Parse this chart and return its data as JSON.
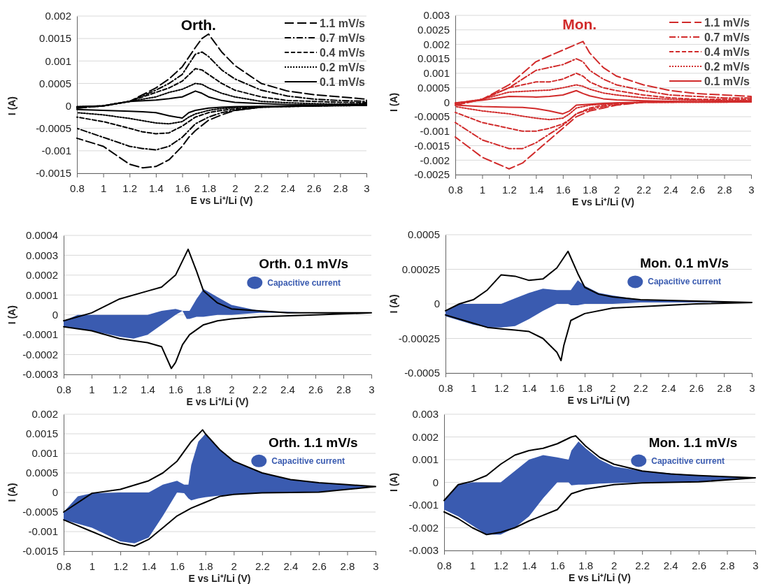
{
  "chart_data": [
    {
      "type": "line",
      "title": "Orth.",
      "xlabel": "E vs Li⁺/Li (V)",
      "ylabel": "I (A)",
      "xlim": [
        0.8,
        3
      ],
      "xticks": [
        0.8,
        1,
        1.2,
        1.4,
        1.6,
        1.8,
        2,
        2.2,
        2.4,
        2.6,
        2.8,
        3
      ],
      "ylim": [
        -0.0015,
        0.002
      ],
      "yticks": [
        -0.0015,
        -0.001,
        -0.0005,
        0,
        0.0005,
        0.001,
        0.0015,
        0.002
      ],
      "grid": "y",
      "legend": "top right",
      "x": [
        0.8,
        1.0,
        1.2,
        1.4,
        1.5,
        1.6,
        1.7,
        1.75,
        1.8,
        1.9,
        2.0,
        2.2,
        2.4,
        2.6,
        2.8,
        3.0,
        3.0,
        2.6,
        2.2,
        2.0,
        1.9,
        1.8,
        1.7,
        1.65,
        1.6,
        1.5,
        1.4,
        1.3,
        1.2,
        1.0,
        0.8
      ],
      "series": [
        {
          "name": "1.1 mV/s",
          "color": "#000000",
          "line_style": "longdash",
          "values": [
            -5e-05,
            0,
            0.0001,
            0.0004,
            0.0006,
            0.00087,
            0.0013,
            0.0015,
            0.0016,
            0.0012,
            0.0009,
            0.0005,
            0.00033,
            0.00025,
            0.0002,
            0.00015,
            5e-05,
            0,
            -3e-05,
            -0.0001,
            -0.0002,
            -0.00032,
            -0.00055,
            -0.0007,
            -0.0009,
            -0.0012,
            -0.00135,
            -0.00138,
            -0.0013,
            -0.0009,
            -0.00072
          ]
        },
        {
          "name": "0.7 mV/s",
          "color": "#000000",
          "line_style": "dashdot",
          "values": [
            -5e-05,
            0,
            0.0001,
            0.00035,
            0.0005,
            0.0007,
            0.00115,
            0.0012,
            0.0011,
            0.0008,
            0.0006,
            0.00035,
            0.00022,
            0.00015,
            0.00012,
            0.0001,
            3e-05,
            0,
            -3e-05,
            -0.0001,
            -0.00015,
            -0.00025,
            -0.0004,
            -0.00055,
            -0.0007,
            -0.0009,
            -0.00098,
            -0.00095,
            -0.0009,
            -0.0007,
            -0.0005
          ]
        },
        {
          "name": "0.4 mV/s",
          "color": "#000000",
          "line_style": "dashed",
          "values": [
            -3e-05,
            0,
            0.0001,
            0.0003,
            0.0004,
            0.00055,
            0.00083,
            0.0008,
            0.0007,
            0.0005,
            0.00035,
            0.0002,
            0.00012,
            0.0001,
            8e-05,
            7e-05,
            2e-05,
            0,
            -2e-05,
            -7e-05,
            -0.0001,
            -0.00015,
            -0.00025,
            -0.00035,
            -0.00045,
            -0.0006,
            -0.00062,
            -0.00058,
            -0.0005,
            -0.00035,
            -0.00025
          ]
        },
        {
          "name": "0.2 mV/s",
          "color": "#000000",
          "line_style": "dotted",
          "values": [
            -2e-05,
            0,
            0.0001,
            0.0002,
            0.0003,
            0.00037,
            0.0005,
            0.00048,
            0.0004,
            0.00028,
            0.0002,
            0.0001,
            7e-05,
            5e-05,
            4e-05,
            4e-05,
            1e-05,
            0,
            -1e-05,
            -4e-05,
            -6e-05,
            -0.0001,
            -0.00018,
            -0.00025,
            -0.00035,
            -0.0004,
            -0.00038,
            -0.00033,
            -0.00028,
            -0.0002,
            -0.00015
          ]
        },
        {
          "name": "0.1 mV/s",
          "color": "#000000",
          "line_style": "solid",
          "values": [
            -2e-05,
            0,
            0.0001,
            0.00013,
            0.00016,
            0.0002,
            0.00033,
            0.00028,
            0.0002,
            0.00012,
            8e-05,
            5e-05,
            3e-05,
            2e-05,
            2e-05,
            3e-05,
            1e-05,
            0,
            -1e-05,
            -2e-05,
            -3e-05,
            -5e-05,
            -0.0001,
            -0.00015,
            -0.00027,
            -0.00022,
            -0.00015,
            -0.00013,
            -0.00012,
            -0.0001,
            -8e-05
          ]
        }
      ]
    },
    {
      "type": "line",
      "title": "Mon.",
      "xlabel": "E vs Li⁺/Li (V)",
      "ylabel": "I (A)",
      "xlim": [
        0.8,
        3
      ],
      "xticks": [
        0.8,
        1,
        1.2,
        1.4,
        1.6,
        1.8,
        2,
        2.2,
        2.4,
        2.6,
        2.8,
        3
      ],
      "ylim": [
        -0.0025,
        0.003
      ],
      "yticks": [
        -0.0025,
        -0.002,
        -0.0015,
        -0.001,
        -0.0005,
        0,
        0.0005,
        0.001,
        0.0015,
        0.002,
        0.0025,
        0.003
      ],
      "grid": "y",
      "legend": "top right",
      "x": [
        0.8,
        1.0,
        1.2,
        1.4,
        1.5,
        1.6,
        1.7,
        1.75,
        1.8,
        1.9,
        2.0,
        2.2,
        2.4,
        2.6,
        2.8,
        3.0,
        3.0,
        2.6,
        2.2,
        2.0,
        1.9,
        1.8,
        1.7,
        1.65,
        1.6,
        1.5,
        1.4,
        1.3,
        1.2,
        1.0,
        0.8
      ],
      "series": [
        {
          "name": "1.1 mV/s",
          "color": "#d12b2b",
          "line_style": "longdash",
          "values": [
            -0.0001,
            0.0001,
            0.0006,
            0.0014,
            0.0016,
            0.0018,
            0.002,
            0.0021,
            0.0017,
            0.0012,
            0.0009,
            0.0006,
            0.0004,
            0.0003,
            0.00025,
            0.0002,
            5e-05,
            2e-05,
            0,
            -0.0001,
            -0.0002,
            -0.0003,
            -0.0005,
            -0.0007,
            -0.0009,
            -0.0013,
            -0.0017,
            -0.0021,
            -0.0023,
            -0.0019,
            -0.0012
          ]
        },
        {
          "name": "0.7 mV/s",
          "color": "#d12b2b",
          "line_style": "dashdot",
          "values": [
            -0.0001,
            0.0001,
            0.0005,
            0.0011,
            0.0012,
            0.0013,
            0.0015,
            0.0014,
            0.0011,
            0.0008,
            0.0006,
            0.0004,
            0.00025,
            0.0002,
            0.00015,
            0.00015,
            3e-05,
            1e-05,
            0,
            -8e-05,
            -0.00015,
            -0.00025,
            -0.0004,
            -0.0006,
            -0.0008,
            -0.0011,
            -0.0014,
            -0.0016,
            -0.0016,
            -0.0013,
            -0.0007
          ]
        },
        {
          "name": "0.4 mV/s",
          "color": "#d12b2b",
          "line_style": "dashed",
          "values": [
            -5e-05,
            0.0001,
            0.0005,
            0.0007,
            0.0007,
            0.0008,
            0.001,
            0.0009,
            0.0007,
            0.0005,
            0.0004,
            0.00025,
            0.00015,
            0.0001,
            0.0001,
            0.0001,
            2e-05,
            1e-05,
            0,
            -5e-05,
            -0.0001,
            -0.0002,
            -0.0004,
            -0.0006,
            -0.00075,
            -0.0009,
            -0.001,
            -0.001,
            -0.0009,
            -0.0007,
            -0.00035
          ]
        },
        {
          "name": "0.2 mV/s",
          "color": "#d12b2b",
          "line_style": "dotted",
          "values": [
            -3e-05,
            0.0001,
            0.00035,
            0.0004,
            0.00042,
            0.0005,
            0.0006,
            0.00055,
            0.00045,
            0.00032,
            0.00025,
            0.00015,
            0.0001,
            7e-05,
            6e-05,
            6e-05,
            1e-05,
            0,
            0,
            -3e-05,
            -6e-05,
            -0.0001,
            -0.0002,
            -0.0004,
            -0.00055,
            -0.0006,
            -0.00055,
            -0.00048,
            -0.0004,
            -0.0003,
            -0.00015
          ]
        },
        {
          "name": "0.1 mV/s",
          "color": "#d12b2b",
          "line_style": "solid",
          "values": [
            -2e-05,
            7e-05,
            0.0002,
            0.00018,
            0.0002,
            0.00025,
            0.0004,
            0.0003,
            0.00022,
            0.00012,
            8e-05,
            5e-05,
            3e-05,
            2e-05,
            2e-05,
            2e-05,
            1e-05,
            0,
            0,
            -2e-05,
            -4e-05,
            -7e-05,
            -0.0001,
            -0.0003,
            -0.0004,
            -0.0003,
            -0.00022,
            -0.00018,
            -0.00017,
            -0.00015,
            -0.0001
          ]
        }
      ]
    },
    {
      "type": "line",
      "title": "Orth. 0.1 mV/s",
      "xlabel": "E vs Li⁺/Li (V)",
      "ylabel": "I (A)",
      "xlim": [
        0.8,
        3
      ],
      "xticks": [
        0.8,
        1,
        1.2,
        1.4,
        1.6,
        1.8,
        2,
        2.2,
        2.4,
        2.6,
        2.8,
        3
      ],
      "ylim": [
        -0.0003,
        0.0004
      ],
      "yticks": [
        -0.0003,
        -0.0002,
        -0.0001,
        0,
        0.0001,
        0.0002,
        0.0003,
        0.0004
      ],
      "grid": "y",
      "legend": "right",
      "series": [
        {
          "type": "area",
          "name": "Capacitive current",
          "color": "#3a5bb0",
          "x": [
            0.8,
            0.9,
            1.0,
            1.2,
            1.3,
            1.4,
            1.5,
            1.6,
            1.65,
            1.68,
            1.7,
            1.75,
            1.8,
            1.9,
            2.0,
            2.2,
            2.6,
            3.0,
            2.6,
            2.2,
            2.0,
            1.9,
            1.8,
            1.75,
            1.7,
            1.68,
            1.65,
            1.6,
            1.5,
            1.4,
            1.3,
            1.2,
            1.0,
            0.9,
            0.8
          ],
          "values": [
            -3e-05,
            0,
            0,
            0,
            0,
            0,
            2e-05,
            3e-05,
            2e-05,
            2e-05,
            2e-05,
            8e-05,
            0.00013,
            9e-05,
            5e-05,
            2e-05,
            1e-05,
            1e-05,
            1e-05,
            1e-05,
            0,
            0,
            -1e-05,
            -1e-05,
            -2e-05,
            -2e-05,
            2e-05,
            0,
            -5e-05,
            -0.0001,
            -0.00012,
            -0.00011,
            -8e-05,
            -7e-05,
            -6e-05
          ]
        },
        {
          "color": "#000000",
          "x": [
            0.8,
            1.0,
            1.2,
            1.4,
            1.5,
            1.6,
            1.69,
            1.75,
            1.8,
            1.9,
            2.0,
            2.2,
            2.4,
            2.6,
            2.8,
            3.0,
            3.0,
            2.6,
            2.2,
            2.0,
            1.9,
            1.8,
            1.7,
            1.65,
            1.6,
            1.57,
            1.5,
            1.4,
            1.3,
            1.2,
            1.0,
            0.8
          ],
          "values": [
            -3e-05,
            1e-05,
            8e-05,
            0.00012,
            0.00014,
            0.0002,
            0.00033,
            0.00022,
            0.00012,
            6e-05,
            3e-05,
            2e-05,
            1e-05,
            1e-05,
            1e-05,
            1e-05,
            1e-05,
            0,
            -1e-05,
            -2e-05,
            -3e-05,
            -5e-05,
            -0.0001,
            -0.00015,
            -0.00024,
            -0.00027,
            -0.00016,
            -0.00014,
            -0.00013,
            -0.00012,
            -8e-05,
            -6e-05
          ]
        }
      ]
    },
    {
      "type": "line",
      "title": "Mon. 0.1 mV/s",
      "xlabel": "E vs Li⁺/Li (V)",
      "ylabel": "I (A)",
      "xlim": [
        0.8,
        3
      ],
      "xticks": [
        0.8,
        1,
        1.2,
        1.4,
        1.6,
        1.8,
        2,
        2.2,
        2.4,
        2.6,
        2.8,
        3
      ],
      "ylim": [
        -0.0005,
        0.0005
      ],
      "yticks": [
        -0.0005,
        -0.00025,
        0,
        0.00025,
        0.0005
      ],
      "grid": "y",
      "legend": "right",
      "series": [
        {
          "type": "area",
          "name": "Capacitive current",
          "color": "#3a5bb0",
          "x": [
            0.8,
            0.9,
            1.0,
            1.1,
            1.2,
            1.3,
            1.4,
            1.5,
            1.6,
            1.68,
            1.7,
            1.75,
            1.8,
            1.9,
            2.0,
            2.2,
            2.6,
            3.0,
            2.6,
            2.2,
            2.0,
            1.9,
            1.8,
            1.75,
            1.7,
            1.68,
            1.6,
            1.5,
            1.4,
            1.3,
            1.2,
            1.1,
            1.0,
            0.9,
            0.8
          ],
          "values": [
            -5e-05,
            0,
            0,
            0,
            0,
            4e-05,
            8e-05,
            0.00011,
            0.0001,
            0.0001,
            0.0001,
            0.00017,
            0.00013,
            8e-05,
            6e-05,
            3e-05,
            2e-05,
            1e-05,
            1e-05,
            1e-05,
            0,
            0,
            0,
            -1e-05,
            -1e-05,
            0,
            0,
            -5e-05,
            -0.00011,
            -0.00016,
            -0.00017,
            -0.00017,
            -0.00015,
            -0.00012,
            -9e-05
          ]
        },
        {
          "color": "#000000",
          "x": [
            0.8,
            0.9,
            1.0,
            1.1,
            1.2,
            1.3,
            1.4,
            1.5,
            1.6,
            1.68,
            1.75,
            1.8,
            1.9,
            2.0,
            2.2,
            2.6,
            3.0,
            3.0,
            2.6,
            2.4,
            2.2,
            2.0,
            1.8,
            1.7,
            1.65,
            1.63,
            1.6,
            1.5,
            1.4,
            1.3,
            1.2,
            1.1,
            1.0,
            0.8
          ],
          "values": [
            -5e-05,
            0,
            3e-05,
            0.0001,
            0.00021,
            0.0002,
            0.00017,
            0.00018,
            0.00026,
            0.00038,
            0.00022,
            0.00012,
            7e-05,
            5e-05,
            3e-05,
            2e-05,
            1e-05,
            1e-05,
            0,
            -1e-05,
            -2e-05,
            -3e-05,
            -7e-05,
            -0.00012,
            -0.0003,
            -0.00041,
            -0.00035,
            -0.00025,
            -0.0002,
            -0.00019,
            -0.00018,
            -0.00017,
            -0.00014,
            -8e-05
          ]
        }
      ]
    },
    {
      "type": "line",
      "title": "Orth. 1.1 mV/s",
      "xlabel": "E vs Li⁺/Li (V)",
      "ylabel": "I (A)",
      "xlim": [
        0.8,
        3
      ],
      "xticks": [
        0.8,
        1,
        1.2,
        1.4,
        1.6,
        1.8,
        2,
        2.2,
        2.4,
        2.6,
        2.8,
        3
      ],
      "ylim": [
        -0.0015,
        0.002
      ],
      "yticks": [
        -0.0015,
        -0.001,
        -0.0005,
        0,
        0.0005,
        0.001,
        0.0015,
        0.002
      ],
      "grid": "y",
      "legend": "right",
      "series": [
        {
          "type": "area",
          "name": "Capacitive current",
          "color": "#3a5bb0",
          "x": [
            0.8,
            0.9,
            1.0,
            1.2,
            1.3,
            1.4,
            1.5,
            1.6,
            1.65,
            1.68,
            1.7,
            1.75,
            1.8,
            1.9,
            2.0,
            2.2,
            2.4,
            2.6,
            3.0,
            2.6,
            2.4,
            2.2,
            2.0,
            1.9,
            1.8,
            1.75,
            1.7,
            1.68,
            1.65,
            1.6,
            1.5,
            1.4,
            1.3,
            1.2,
            1.0,
            0.9,
            0.8
          ],
          "values": [
            -0.0005,
            -0.0001,
            -2e-05,
            0,
            0,
            0,
            0.0002,
            0.0003,
            0.0002,
            0.0002,
            0.0007,
            0.0013,
            0.0015,
            0.0011,
            0.0008,
            0.0005,
            0.00033,
            0.00025,
            0.00015,
            2e-05,
            1e-05,
            -1e-05,
            -5e-05,
            -8e-05,
            -0.00012,
            -0.00015,
            -0.0002,
            -0.00015,
            -2e-05,
            0,
            -0.0006,
            -0.00115,
            -0.0013,
            -0.00125,
            -0.0009,
            -0.0008,
            -0.0007
          ]
        },
        {
          "color": "#000000",
          "x": [
            0.8,
            1.0,
            1.2,
            1.4,
            1.5,
            1.6,
            1.7,
            1.78,
            1.8,
            1.9,
            2.0,
            2.2,
            2.4,
            2.6,
            2.8,
            3.0,
            3.0,
            2.6,
            2.2,
            2.0,
            1.9,
            1.8,
            1.7,
            1.6,
            1.5,
            1.4,
            1.3,
            1.2,
            1.0,
            0.8
          ],
          "values": [
            -0.0005,
            -2e-05,
            8e-05,
            0.0003,
            0.0005,
            0.0008,
            0.0013,
            0.0016,
            0.0015,
            0.0011,
            0.0008,
            0.0005,
            0.00033,
            0.00025,
            0.0002,
            0.00015,
            0.00015,
            1e-05,
            -1e-05,
            -5e-05,
            -0.0001,
            -0.00025,
            -0.0004,
            -0.0006,
            -0.0009,
            -0.0012,
            -0.00137,
            -0.0013,
            -0.001,
            -0.0007
          ]
        }
      ]
    },
    {
      "type": "line",
      "title": "Mon. 1.1 mV/s",
      "xlabel": "E vs Li⁺/Li (V)",
      "ylabel": "I (A)",
      "xlim": [
        0.8,
        3
      ],
      "xticks": [
        0.8,
        1,
        1.2,
        1.4,
        1.6,
        1.8,
        2,
        2.2,
        2.4,
        2.6,
        2.8,
        3
      ],
      "ylim": [
        -0.003,
        0.003
      ],
      "yticks": [
        -0.003,
        -0.002,
        -0.001,
        0,
        0.001,
        0.002,
        0.003
      ],
      "grid": "y",
      "legend": "right",
      "series": [
        {
          "type": "area",
          "name": "Capacitive current",
          "color": "#3a5bb0",
          "x": [
            0.8,
            0.9,
            1.0,
            1.1,
            1.2,
            1.3,
            1.4,
            1.5,
            1.6,
            1.68,
            1.7,
            1.75,
            1.8,
            1.9,
            2.0,
            2.2,
            2.6,
            3.0,
            2.6,
            2.2,
            2.0,
            1.9,
            1.8,
            1.75,
            1.7,
            1.68,
            1.6,
            1.5,
            1.4,
            1.3,
            1.2,
            1.1,
            1.0,
            0.9,
            0.8
          ],
          "values": [
            -0.0008,
            -0.0001,
            0,
            0,
            0,
            0.0005,
            0.001,
            0.0012,
            0.0011,
            0.001,
            0.0014,
            0.0018,
            0.0015,
            0.001,
            0.0007,
            0.0005,
            0.0003,
            0.0002,
            2e-05,
            0,
            -3e-05,
            -5e-05,
            -0.0001,
            -0.0001,
            -0.00013,
            0,
            0,
            -0.0007,
            -0.0015,
            -0.002,
            -0.0023,
            -0.0023,
            -0.0019,
            -0.0015,
            -0.0012
          ]
        },
        {
          "color": "#000000",
          "x": [
            0.8,
            0.9,
            1.0,
            1.1,
            1.2,
            1.3,
            1.4,
            1.5,
            1.6,
            1.7,
            1.73,
            1.8,
            1.9,
            2.0,
            2.2,
            2.4,
            2.6,
            3.0,
            3.0,
            2.6,
            2.2,
            2.0,
            1.8,
            1.7,
            1.6,
            1.4,
            1.3,
            1.2,
            1.1,
            1.0,
            0.9,
            0.8
          ],
          "values": [
            -0.0008,
            -0.0001,
            5e-05,
            0.0003,
            0.0008,
            0.0012,
            0.0014,
            0.0015,
            0.0017,
            0.002,
            0.00205,
            0.0016,
            0.0011,
            0.0008,
            0.0005,
            0.00037,
            0.0003,
            0.0002,
            0.0002,
            2e-05,
            -2e-05,
            -0.0001,
            -0.0003,
            -0.0005,
            -0.0012,
            -0.0017,
            -0.002,
            -0.0022,
            -0.0023,
            -0.002,
            -0.0016,
            -0.0013
          ]
        }
      ]
    }
  ]
}
